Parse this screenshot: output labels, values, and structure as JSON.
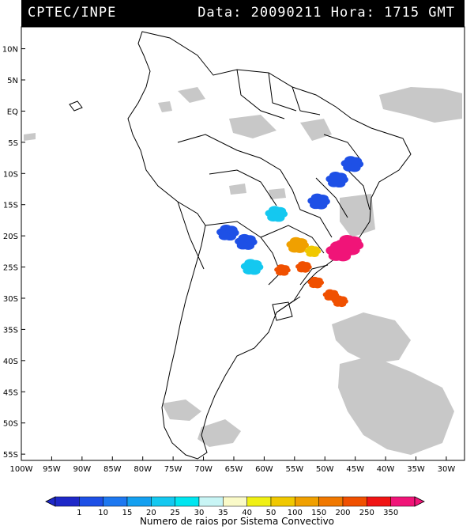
{
  "header": {
    "source": "CPTEC/INPE",
    "datetime": "Data: 20090211 Hora: 1715 GMT"
  },
  "map": {
    "lat_labels": [
      "10N",
      "5N",
      "EQ",
      "5S",
      "10S",
      "15S",
      "20S",
      "25S",
      "30S",
      "35S",
      "40S",
      "45S",
      "50S",
      "55S"
    ],
    "lon_labels": [
      "100W",
      "95W",
      "90W",
      "85W",
      "80W",
      "75W",
      "70W",
      "65W",
      "60W",
      "55W",
      "50W",
      "45W",
      "40W",
      "35W",
      "30W"
    ],
    "lat_range": [
      -56,
      13.5
    ],
    "lon_range": [
      -100,
      -27
    ]
  },
  "legend": {
    "ticks": [
      "1",
      "10",
      "15",
      "20",
      "25",
      "30",
      "35",
      "40",
      "50",
      "100",
      "150",
      "200",
      "250",
      "350"
    ],
    "colors": [
      "#1e28c8",
      "#1e50e6",
      "#1e78f0",
      "#14a0f0",
      "#14c8f0",
      "#00e6f0",
      "#c8f5f5",
      "#fafac8",
      "#f0f014",
      "#f0c800",
      "#f0a000",
      "#f07800",
      "#f05000",
      "#f01414",
      "#f01478"
    ],
    "caption": "Numero de raios por Sistema Convectivo"
  },
  "chart_data": {
    "type": "scatter",
    "lightning_clusters": [
      {
        "lon": -45.5,
        "lat": -8.5,
        "color_index": 1
      },
      {
        "lon": -48.0,
        "lat": -11.0,
        "color_index": 1
      },
      {
        "lon": -51.0,
        "lat": -14.5,
        "color_index": 1
      },
      {
        "lon": -66.0,
        "lat": -19.5,
        "color_index": 1
      },
      {
        "lon": -63.0,
        "lat": -21.0,
        "color_index": 1
      },
      {
        "lon": -58.0,
        "lat": -16.5,
        "color_index": 4
      },
      {
        "lon": -62.0,
        "lat": -25.0,
        "color_index": 4
      },
      {
        "lon": -54.5,
        "lat": -21.5,
        "color_index": 10
      },
      {
        "lon": -52.0,
        "lat": -22.5,
        "color_index": 9
      },
      {
        "lon": -47.5,
        "lat": -22.5,
        "color_index": 14
      },
      {
        "lon": -46.0,
        "lat": -21.5,
        "color_index": 14
      },
      {
        "lon": -57.0,
        "lat": -25.5,
        "color_index": 12
      },
      {
        "lon": -53.5,
        "lat": -25.0,
        "color_index": 12
      },
      {
        "lon": -51.5,
        "lat": -27.5,
        "color_index": 12
      },
      {
        "lon": -49.0,
        "lat": -29.5,
        "color_index": 12
      },
      {
        "lon": -47.5,
        "lat": -30.5,
        "color_index": 12
      }
    ]
  }
}
